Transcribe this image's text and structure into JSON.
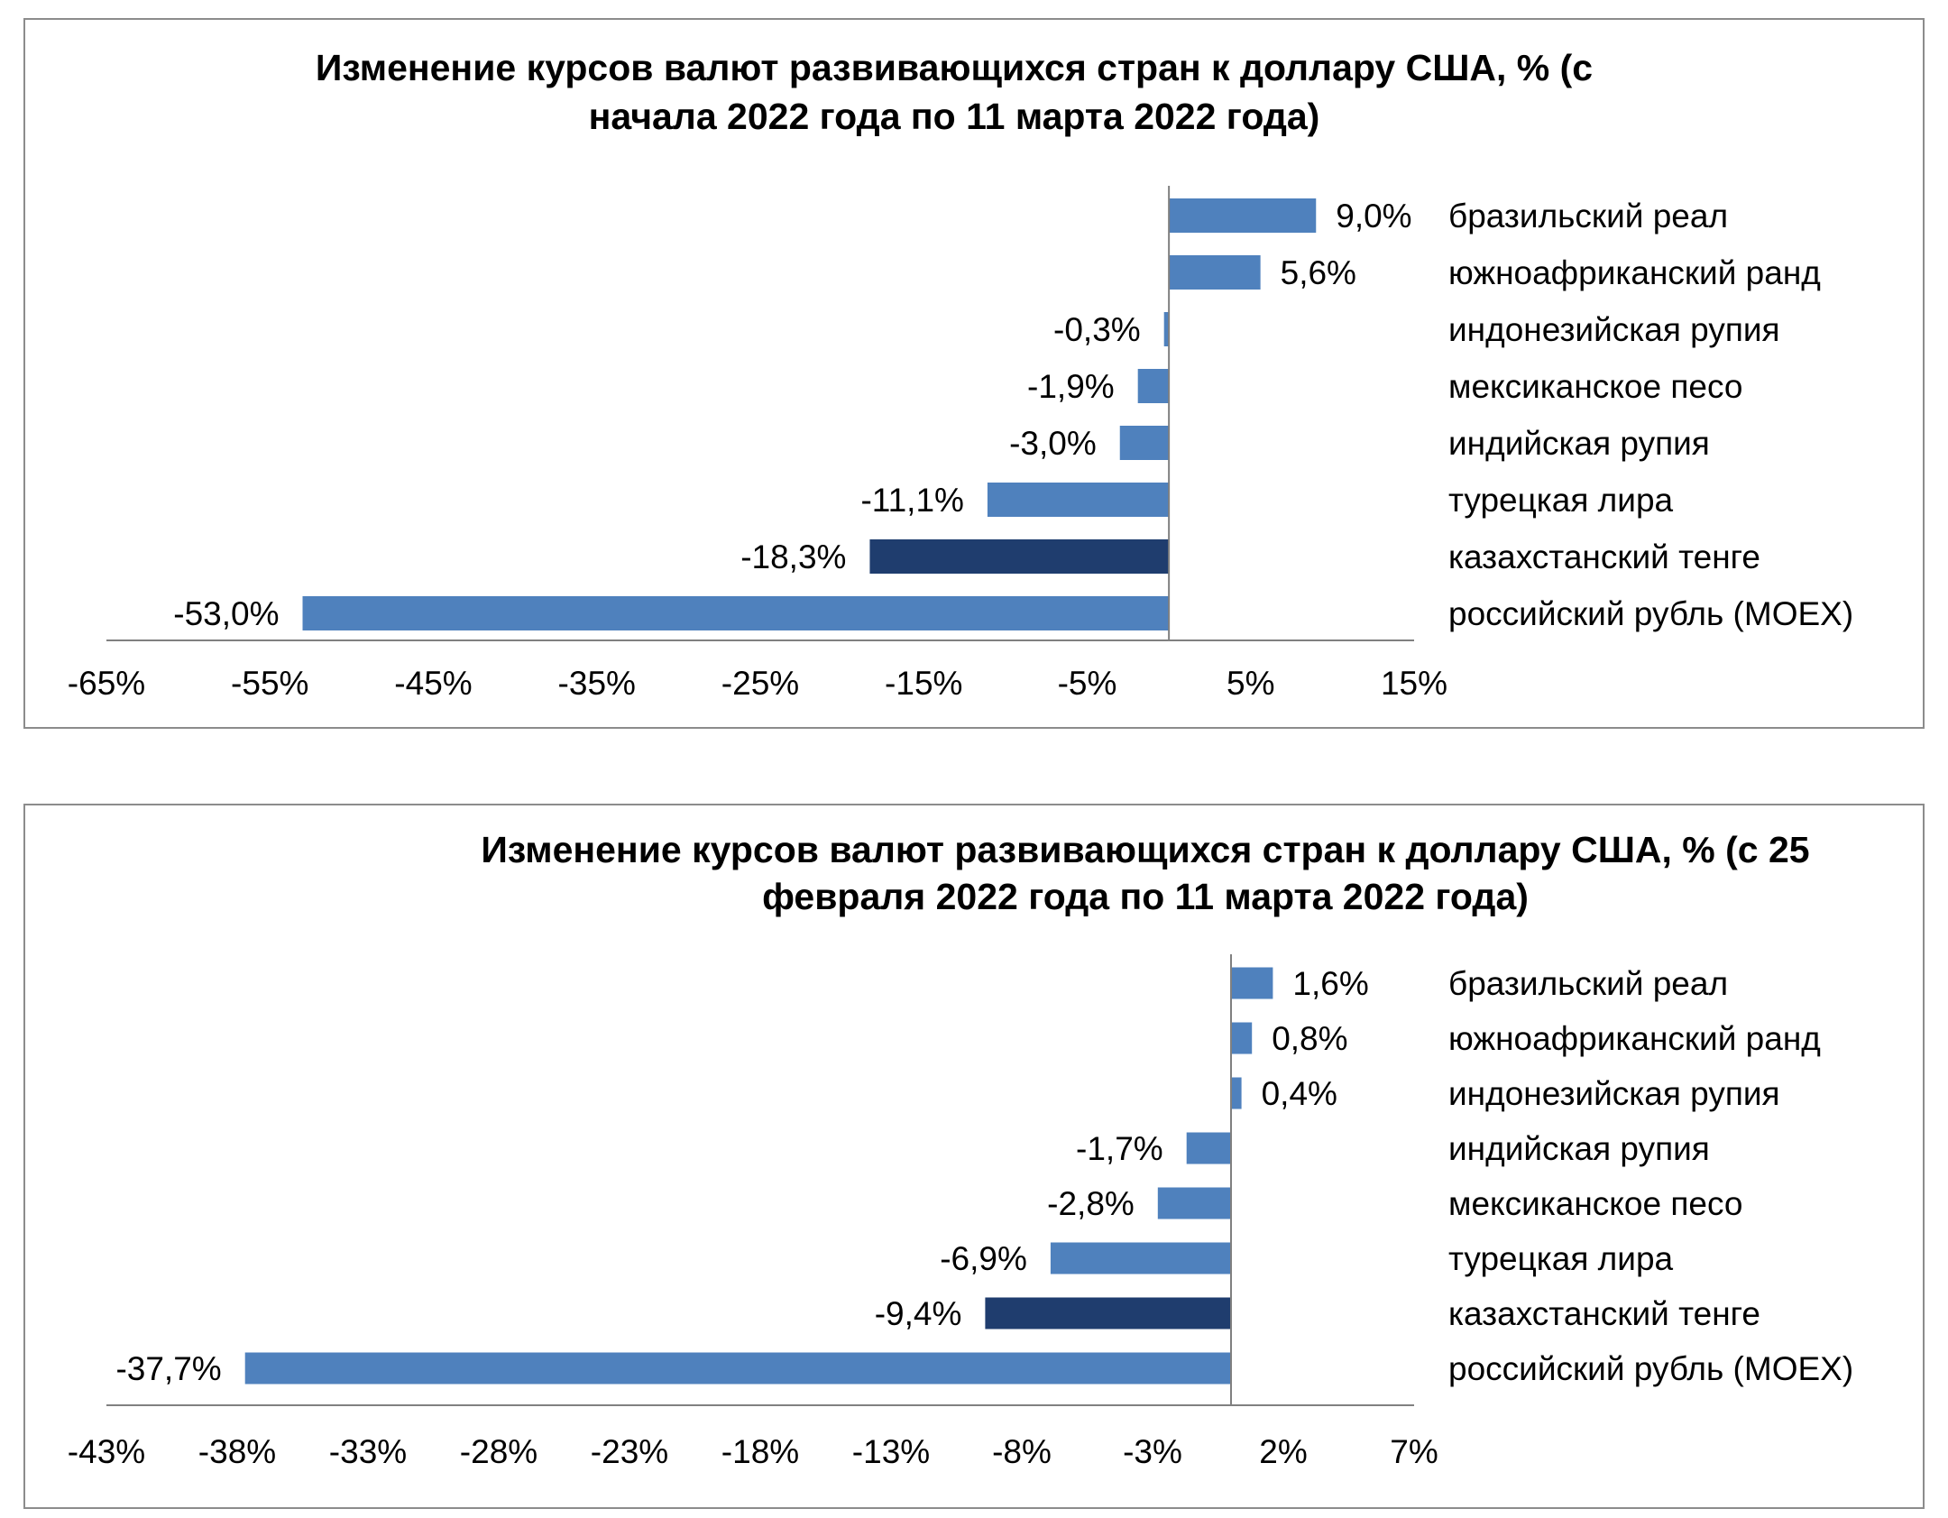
{
  "chart_data": [
    {
      "type": "bar",
      "orientation": "horizontal",
      "title": "Изменение курсов валют развивающихся стран к доллару США, % (с начала 2022 года по 11 марта 2022 года)",
      "title_lines": [
        "Изменение курсов валют развивающихся стран к доллару США, % (с",
        "начала 2022 года по 11 марта 2022 года)"
      ],
      "categories": [
        "бразильский реал",
        "южноафриканский ранд",
        "индонезийская рупия",
        "мексиканское песо",
        "индийская рупия",
        "турецкая лира",
        "казахстанский тенге",
        "российский рубль (MOEX)"
      ],
      "values": [
        9.0,
        5.6,
        -0.3,
        -1.9,
        -3.0,
        -11.1,
        -18.3,
        -53.0
      ],
      "value_labels": [
        "9,0%",
        "5,6%",
        "-0,3%",
        "-1,9%",
        "-3,0%",
        "-11,1%",
        "-18,3%",
        "-53,0%"
      ],
      "highlight_index": 6,
      "xlim": [
        -65,
        15
      ],
      "xticks": [
        -65,
        -55,
        -45,
        -35,
        -25,
        -15,
        -5,
        5,
        15
      ],
      "xtick_labels": [
        "-65%",
        "-55%",
        "-45%",
        "-35%",
        "-25%",
        "-15%",
        "-5%",
        "5%",
        "15%"
      ],
      "xlabel": "",
      "ylabel": "",
      "grid": false,
      "legend": "none",
      "bar_color": "#4f81bd",
      "highlight_color": "#1f3d6e"
    },
    {
      "type": "bar",
      "orientation": "horizontal",
      "title": "Изменение курсов валют развивающихся стран к доллару США, % (с 25 февраля 2022 года по 11 марта 2022 года)",
      "title_lines": [
        "Изменение курсов валют развивающихся стран к доллару США, % (с 25",
        "февраля 2022 года по 11 марта 2022 года)"
      ],
      "categories": [
        "бразильский реал",
        "южноафриканский ранд",
        "индонезийская рупия",
        "индийская рупия",
        "мексиканское песо",
        "турецкая лира",
        "казахстанский тенге",
        "российский рубль (MOEX)"
      ],
      "values": [
        1.6,
        0.8,
        0.4,
        -1.7,
        -2.8,
        -6.9,
        -9.4,
        -37.7
      ],
      "value_labels": [
        "1,6%",
        "0,8%",
        "0,4%",
        "-1,7%",
        "-2,8%",
        "-6,9%",
        "-9,4%",
        "-37,7%"
      ],
      "highlight_index": 6,
      "xlim": [
        -43,
        7
      ],
      "xticks": [
        -43,
        -38,
        -33,
        -28,
        -23,
        -18,
        -13,
        -8,
        -3,
        2,
        7
      ],
      "xtick_labels": [
        "-43%",
        "-38%",
        "-33%",
        "-28%",
        "-23%",
        "-18%",
        "-13%",
        "-8%",
        "-3%",
        "2%",
        "7%"
      ],
      "xlabel": "",
      "ylabel": "",
      "grid": false,
      "legend": "none",
      "bar_color": "#4f81bd",
      "highlight_color": "#1f3d6e"
    }
  ]
}
